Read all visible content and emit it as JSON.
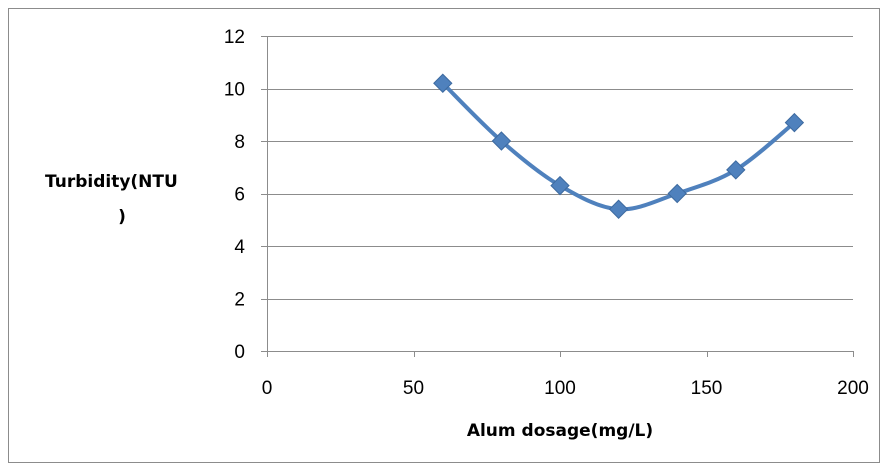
{
  "chart_data": {
    "type": "line",
    "title": "",
    "xlabel": "Alum dosage(mg/L)",
    "ylabel_lines": [
      "Turbidity(NTU",
      ")"
    ],
    "xlim": [
      0,
      200
    ],
    "ylim": [
      0,
      12
    ],
    "x_ticks": [
      "0",
      "50",
      "100",
      "150",
      "200"
    ],
    "y_ticks": [
      "0",
      "2",
      "4",
      "6",
      "8",
      "10",
      "12"
    ],
    "x_tick_values": [
      0,
      50,
      100,
      150,
      200
    ],
    "y_tick_values": [
      0,
      2,
      4,
      6,
      8,
      10,
      12
    ],
    "grid": "horizontal",
    "legend": "none",
    "smooth": true,
    "marker": "diamond",
    "series": [
      {
        "x": [
          60,
          80,
          100,
          120,
          140,
          160,
          180
        ],
        "values": [
          10.2,
          8.0,
          6.3,
          5.4,
          6.0,
          6.9,
          8.7
        ],
        "color": "#4f81bd"
      }
    ]
  }
}
